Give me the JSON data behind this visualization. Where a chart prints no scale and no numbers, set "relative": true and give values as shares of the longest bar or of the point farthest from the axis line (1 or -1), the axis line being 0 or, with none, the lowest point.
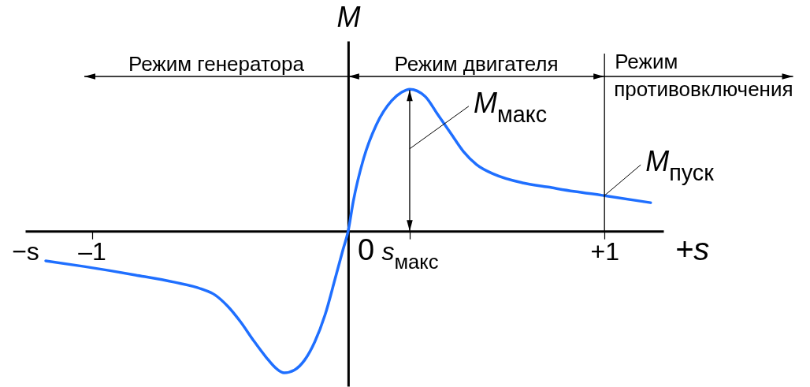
{
  "chart_data": {
    "type": "line",
    "relative": true,
    "xlabel": "+s",
    "ylabel": "M",
    "x": [
      -1.18,
      -1.03,
      -0.83,
      -0.68,
      -0.57,
      -0.52,
      -0.47,
      -0.42,
      -0.37,
      -0.32,
      -0.28,
      -0.25,
      -0.21,
      -0.17,
      -0.13,
      -0.09,
      -0.05,
      -0.02,
      0,
      0.02,
      0.06,
      0.11,
      0.17,
      0.21,
      0.24,
      0.3,
      0.35,
      0.4,
      0.45,
      0.5,
      0.57,
      0.68,
      0.78,
      0.88,
      1,
      1.18
    ],
    "series": [
      {
        "color": "#1f6fff",
        "values": [
          -0.21,
          -0.25,
          -0.31,
          -0.36,
          -0.41,
          -0.45,
          -0.53,
          -0.64,
          -0.77,
          -0.89,
          -0.97,
          -1,
          -0.98,
          -0.91,
          -0.78,
          -0.59,
          -0.33,
          -0.13,
          0,
          0.21,
          0.51,
          0.75,
          0.92,
          0.98,
          1,
          0.95,
          0.82,
          0.69,
          0.56,
          0.47,
          0.4,
          0.34,
          0.31,
          0.28,
          0.25,
          0.2
        ]
      }
    ],
    "xlim": [
      -1.26,
      1.23
    ],
    "xticks": [
      {
        "value": -1.26,
        "label": "−s"
      },
      {
        "value": -1,
        "label": "–1"
      },
      {
        "value": 0.24,
        "label": "s$_{макс}$"
      },
      {
        "value": 1,
        "label": "+1"
      }
    ],
    "ref_lines": [
      {
        "axis": "x",
        "value": 1,
        "label": "Режим противовключения"
      }
    ],
    "annotations": [
      "Режим генератора",
      "Режим двигателя",
      {
        "text": "0",
        "x": 0,
        "y": 0
      },
      {
        "text": "M$_{макс}$",
        "x": 0.24,
        "y": 1
      },
      {
        "text": "M$_{пуск}$",
        "x": 1,
        "y": 0.25
      }
    ]
  }
}
